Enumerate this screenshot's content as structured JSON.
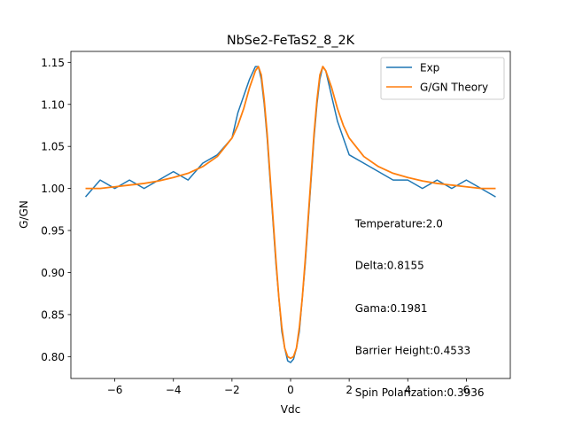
{
  "chart_data": {
    "type": "line",
    "title": "NbSe2-FeTaS2_8_2K",
    "xlabel": "Vdc",
    "ylabel": "G/GN",
    "xlim": [
      -7.5,
      7.5
    ],
    "ylim": [
      0.774,
      1.163
    ],
    "x_ticks": [
      -6,
      -4,
      -2,
      0,
      2,
      4,
      6
    ],
    "x_tick_labels": [
      "−6",
      "−4",
      "−2",
      "0",
      "2",
      "4",
      "6"
    ],
    "y_ticks": [
      0.8,
      0.85,
      0.9,
      0.95,
      1.0,
      1.05,
      1.1,
      1.15
    ],
    "y_tick_labels": [
      "0.80",
      "0.85",
      "0.90",
      "0.95",
      "1.00",
      "1.05",
      "1.10",
      "1.15"
    ],
    "grid": false,
    "legend_position": "top-right",
    "series": [
      {
        "name": "Exp",
        "color": "#1f77b4",
        "x": [
          -7.0,
          -6.5,
          -6.0,
          -5.5,
          -5.0,
          -4.5,
          -4.0,
          -3.5,
          -3.0,
          -2.5,
          -2.0,
          -1.8,
          -1.6,
          -1.4,
          -1.2,
          -1.1,
          -1.0,
          -0.9,
          -0.8,
          -0.7,
          -0.6,
          -0.5,
          -0.4,
          -0.3,
          -0.2,
          -0.1,
          0.0,
          0.1,
          0.2,
          0.3,
          0.4,
          0.5,
          0.6,
          0.7,
          0.8,
          0.9,
          1.0,
          1.1,
          1.2,
          1.4,
          1.6,
          1.8,
          2.0,
          2.5,
          3.0,
          3.5,
          4.0,
          4.5,
          5.0,
          5.5,
          6.0,
          6.5,
          7.0
        ],
        "y": [
          0.99,
          1.01,
          1.0,
          1.01,
          1.0,
          1.01,
          1.02,
          1.01,
          1.03,
          1.04,
          1.06,
          1.09,
          1.11,
          1.13,
          1.145,
          1.145,
          1.13,
          1.1,
          1.06,
          1.01,
          0.96,
          0.91,
          0.87,
          0.83,
          0.81,
          0.795,
          0.793,
          0.797,
          0.81,
          0.83,
          0.87,
          0.91,
          0.96,
          1.01,
          1.06,
          1.1,
          1.13,
          1.145,
          1.14,
          1.11,
          1.08,
          1.06,
          1.04,
          1.03,
          1.02,
          1.01,
          1.01,
          1.0,
          1.01,
          1.0,
          1.01,
          1.0,
          0.99
        ]
      },
      {
        "name": "G/GN Theory",
        "color": "#ff7f0e",
        "x": [
          -7.0,
          -6.5,
          -6.0,
          -5.5,
          -5.0,
          -4.5,
          -4.0,
          -3.5,
          -3.0,
          -2.5,
          -2.0,
          -1.8,
          -1.6,
          -1.4,
          -1.2,
          -1.1,
          -1.0,
          -0.9,
          -0.8,
          -0.7,
          -0.6,
          -0.5,
          -0.4,
          -0.3,
          -0.2,
          -0.1,
          0.0,
          0.1,
          0.2,
          0.3,
          0.4,
          0.5,
          0.6,
          0.7,
          0.8,
          0.9,
          1.0,
          1.1,
          1.2,
          1.4,
          1.6,
          1.8,
          2.0,
          2.5,
          3.0,
          3.5,
          4.0,
          4.5,
          5.0,
          5.5,
          6.0,
          6.5,
          7.0
        ],
        "y": [
          1.0,
          1.0,
          1.002,
          1.004,
          1.006,
          1.009,
          1.013,
          1.018,
          1.026,
          1.038,
          1.06,
          1.075,
          1.095,
          1.12,
          1.14,
          1.145,
          1.135,
          1.105,
          1.065,
          1.015,
          0.965,
          0.915,
          0.87,
          0.835,
          0.81,
          0.8,
          0.798,
          0.8,
          0.81,
          0.835,
          0.87,
          0.915,
          0.965,
          1.015,
          1.065,
          1.105,
          1.135,
          1.145,
          1.14,
          1.12,
          1.095,
          1.075,
          1.06,
          1.038,
          1.026,
          1.018,
          1.013,
          1.009,
          1.006,
          1.004,
          1.002,
          1.0,
          1.0
        ]
      }
    ],
    "annotations": [
      {
        "text": "Temperature:2.0",
        "x": 2.2,
        "y": 0.954
      },
      {
        "text": "Delta:0.8155",
        "x": 2.2,
        "y": 0.904
      },
      {
        "text": "Gama:0.1981",
        "x": 2.2,
        "y": 0.853
      },
      {
        "text": "Barrier Height:0.4533",
        "x": 2.2,
        "y": 0.803
      },
      {
        "text": "Spin Polarization:0.3936",
        "x": 2.2,
        "y": 0.753
      }
    ]
  }
}
